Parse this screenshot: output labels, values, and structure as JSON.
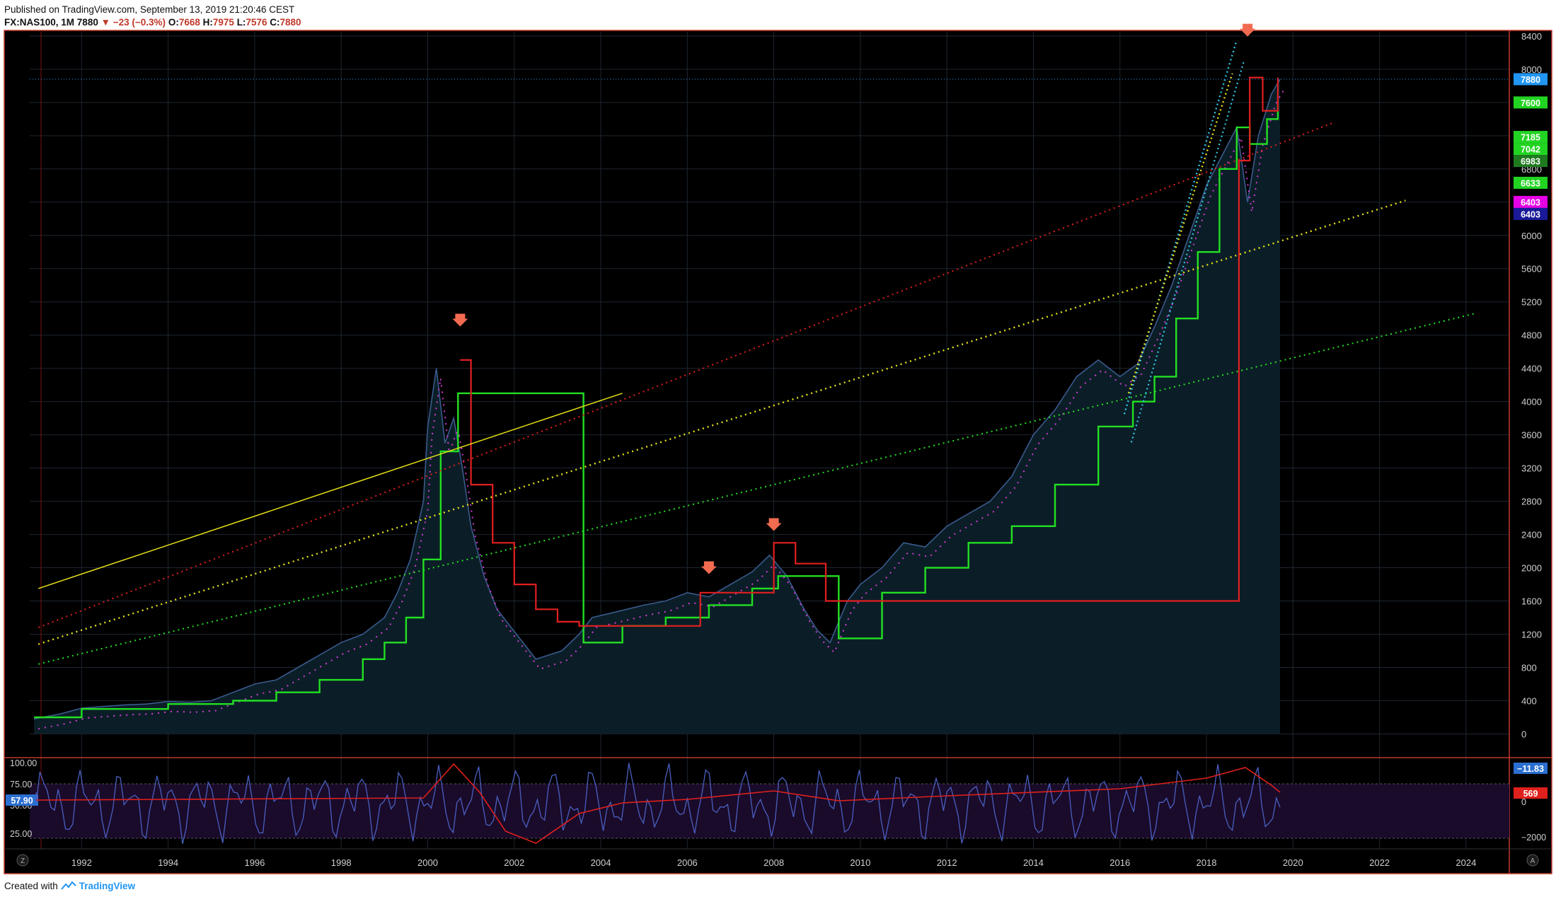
{
  "header": {
    "published": "Published on TradingView.com, September 13, 2019 21:20:46 CEST",
    "symbol": "FX:NAS100, 1M",
    "last": "7880",
    "change": "−23 (−0.3%)",
    "o_label": "O:",
    "o": "7668",
    "h_label": "H:",
    "h": "7975",
    "l_label": "L:",
    "l": "7576",
    "c_label": "C:",
    "c": "7880"
  },
  "footer": {
    "created_with": "Created with",
    "brand": "TradingView"
  },
  "colors": {
    "background": "#000000",
    "grid": "#1e2630",
    "frame": "#c0392b",
    "price_fill": "#0b1e27",
    "price_line": "#3a5a8c",
    "green": "#22e022",
    "red": "#e21f1f",
    "yellow": "#e6e01a",
    "cyan": "#33c8e8",
    "magenta": "#d43bd4",
    "arrow": "#f26b50",
    "osc_blue": "#4a5fc0",
    "osc_red": "#e0201c",
    "osc_band": "#1a0b2a"
  },
  "icons": [
    "arrow-down-icon",
    "tradingview-logo-icon",
    "zoom-z-icon",
    "auto-a-icon"
  ],
  "chart_data": {
    "type": "line",
    "title": "",
    "xlabel": "",
    "ylabel": "",
    "xlim": [
      1990.8,
      2025.0
    ],
    "ylim": [
      -260,
      8450
    ],
    "x_ticks": [
      "1992",
      "1994",
      "1996",
      "1998",
      "2000",
      "2002",
      "2004",
      "2006",
      "2008",
      "2010",
      "2012",
      "2014",
      "2016",
      "2018",
      "2020",
      "2022",
      "2024"
    ],
    "y_ticks": [
      "0",
      "400",
      "800",
      "1200",
      "1600",
      "2000",
      "2400",
      "2800",
      "3200",
      "3600",
      "4000",
      "4400",
      "4800",
      "5200",
      "5600",
      "6000",
      "6400",
      "6800",
      "7200",
      "7600",
      "8000",
      "8400"
    ],
    "series": [
      {
        "role": "price",
        "x": [
          1990.9,
          1991.5,
          1992,
          1992.5,
          1993,
          1993.5,
          1994,
          1994.5,
          1995,
          1995.5,
          1996,
          1996.5,
          1997,
          1997.5,
          1998,
          1998.5,
          1999,
          1999.3,
          1999.6,
          1999.9,
          2000.0,
          2000.2,
          2000.4,
          2000.6,
          2000.8,
          2001.0,
          2001.3,
          2001.6,
          2001.9,
          2002.2,
          2002.5,
          2002.8,
          2003.1,
          2003.5,
          2003.8,
          2004.2,
          2004.6,
          2005,
          2005.5,
          2006,
          2006.5,
          2007,
          2007.5,
          2007.9,
          2008.3,
          2008.7,
          2009.0,
          2009.3,
          2009.7,
          2010,
          2010.5,
          2011,
          2011.5,
          2012,
          2012.5,
          2013,
          2013.5,
          2014,
          2014.5,
          2015,
          2015.5,
          2016.0,
          2016.4,
          2016.8,
          2017.2,
          2017.6,
          2018.0,
          2018.4,
          2018.7,
          2018.95,
          2019.2,
          2019.5,
          2019.7
        ],
        "values": [
          180,
          240,
          310,
          330,
          350,
          360,
          390,
          380,
          400,
          500,
          600,
          650,
          800,
          950,
          1100,
          1200,
          1400,
          1700,
          2100,
          2800,
          3700,
          4400,
          3500,
          3800,
          3200,
          2500,
          1900,
          1500,
          1300,
          1100,
          900,
          950,
          1000,
          1200,
          1400,
          1450,
          1500,
          1550,
          1600,
          1700,
          1650,
          1800,
          1950,
          2150,
          1900,
          1500,
          1250,
          1100,
          1600,
          1800,
          2000,
          2300,
          2250,
          2500,
          2650,
          2800,
          3100,
          3600,
          3900,
          4300,
          4500,
          4300,
          4450,
          4900,
          5400,
          6000,
          6600,
          7000,
          7300,
          6400,
          7200,
          7700,
          7880
        ]
      },
      {
        "role": "green-step",
        "x": [
          1990.9,
          1992,
          1994,
          1995.5,
          1996.5,
          1997.5,
          1998.5,
          1999.0,
          1999.5,
          1999.9,
          2000.3,
          2000.7,
          2003.6,
          2004.5,
          2005.5,
          2006.5,
          2007.5,
          2008.1,
          2009.5,
          2010.5,
          2011.5,
          2012.5,
          2013.5,
          2014.5,
          2015.5,
          2016.3,
          2016.8,
          2017.3,
          2017.8,
          2018.3,
          2018.7,
          2019.0,
          2019.4,
          2019.65
        ],
        "values": [
          200,
          300,
          360,
          400,
          500,
          650,
          900,
          1100,
          1400,
          2100,
          3400,
          4100,
          1100,
          1300,
          1400,
          1550,
          1750,
          1900,
          1150,
          1700,
          2000,
          2300,
          2500,
          3000,
          3700,
          4000,
          4300,
          5000,
          5800,
          6800,
          7300,
          7100,
          7400,
          7600
        ]
      },
      {
        "role": "red-step",
        "x": [
          2000.75,
          2001.0,
          2001.5,
          2002.0,
          2002.5,
          2003.0,
          2003.5,
          2006.3,
          2006.6,
          2008.0,
          2008.5,
          2009.2,
          2018.75,
          2019.0,
          2019.3,
          2019.65
        ],
        "values": [
          4500,
          3000,
          2300,
          1800,
          1500,
          1350,
          1300,
          1700,
          1700,
          2300,
          2050,
          1600,
          6900,
          7900,
          7500,
          7900
        ]
      },
      {
        "role": "trend-yellow-solid",
        "x": [
          1991.0,
          2004.5
        ],
        "values": [
          1750,
          4100
        ]
      },
      {
        "role": "trend-red-dotted",
        "x": [
          1991.0,
          2020.9
        ],
        "values": [
          1280,
          7350
        ]
      },
      {
        "role": "trend-yellow-dotted",
        "x": [
          1991.0,
          2022.6
        ],
        "values": [
          1080,
          6420
        ]
      },
      {
        "role": "trend-green-dotted",
        "x": [
          1991.0,
          2024.2
        ],
        "values": [
          840,
          5060
        ]
      },
      {
        "role": "channel-cyan-dotted",
        "x": [
          2016.1,
          2018.7
        ],
        "values": [
          3850,
          8350
        ]
      },
      {
        "role": "channel-yellow-dotted",
        "x": [
          2016.2,
          2018.6
        ],
        "values": [
          4100,
          7950
        ]
      }
    ],
    "annotations": [
      {
        "type": "arrow-down",
        "x": 2000.75,
        "y": 4980
      },
      {
        "type": "arrow-down",
        "x": 2006.5,
        "y": 2000
      },
      {
        "type": "arrow-down",
        "x": 2008.0,
        "y": 2520
      },
      {
        "type": "arrow-down",
        "x": 2018.95,
        "y": 8470
      }
    ],
    "price_labels": [
      {
        "value": 7880,
        "text": "7880",
        "color": "#2196f3"
      },
      {
        "value": 7600,
        "text": "7600",
        "color": "#22d422"
      },
      {
        "value": 7185,
        "text": "7185",
        "color": "#22d422"
      },
      {
        "value": 7042,
        "text": "7042",
        "color": "#22d422"
      },
      {
        "value": 6983,
        "text": "6983",
        "color": "#1f7a1f"
      },
      {
        "value": 6633,
        "text": "6633",
        "color": "#22d422"
      },
      {
        "value": 6403,
        "text": "6403",
        "color": "#e600e6"
      },
      {
        "value": 6403,
        "text": "6403",
        "color": "#1a1a99"
      }
    ],
    "oscillator": {
      "left_ticks": [
        "100.00",
        "75.00",
        "50.00",
        "25.00"
      ],
      "left_label": "57.90",
      "right_ticks": [
        "0",
        "−2000"
      ],
      "right_labels": [
        "−11.83",
        "569"
      ]
    }
  }
}
